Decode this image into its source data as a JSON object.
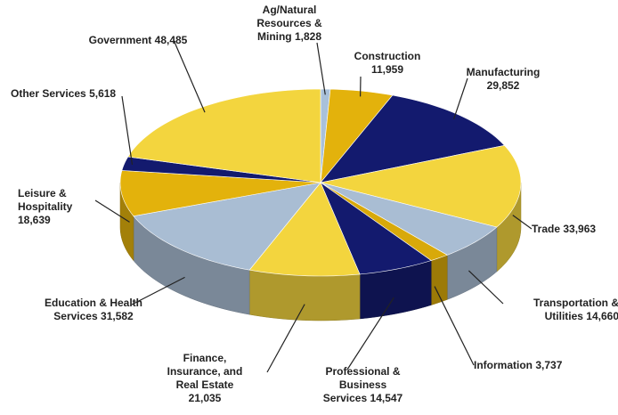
{
  "chart_data": {
    "type": "pie",
    "categories": [
      "Ag/Natural Resources & Mining",
      "Construction",
      "Manufacturing",
      "Trade",
      "Transportation & Utilities",
      "Information",
      "Professional & Business Services",
      "Finance, Insurance, and Real Estate",
      "Education & Health Services",
      "Leisure & Hospitality",
      "Other Services",
      "Government"
    ],
    "values": [
      1828,
      11959,
      29852,
      33963,
      14660,
      3737,
      14547,
      21035,
      31582,
      18639,
      5618,
      48485
    ],
    "value_labels": [
      "1,828",
      "11,959",
      "29,852",
      "33,963",
      "14,660",
      "3,737",
      "14,547",
      "21,035",
      "31,582",
      "18,639",
      "5,618",
      "48,485"
    ],
    "colors": [
      "#a9c1da",
      "#e3b20c",
      "#131a6e",
      "#f3d53e",
      "#a9bdd3",
      "#d8a90a",
      "#131a6e",
      "#f3d53e",
      "#a9bdd3",
      "#e3b20c",
      "#131a6e",
      "#f3d53e"
    ]
  }
}
